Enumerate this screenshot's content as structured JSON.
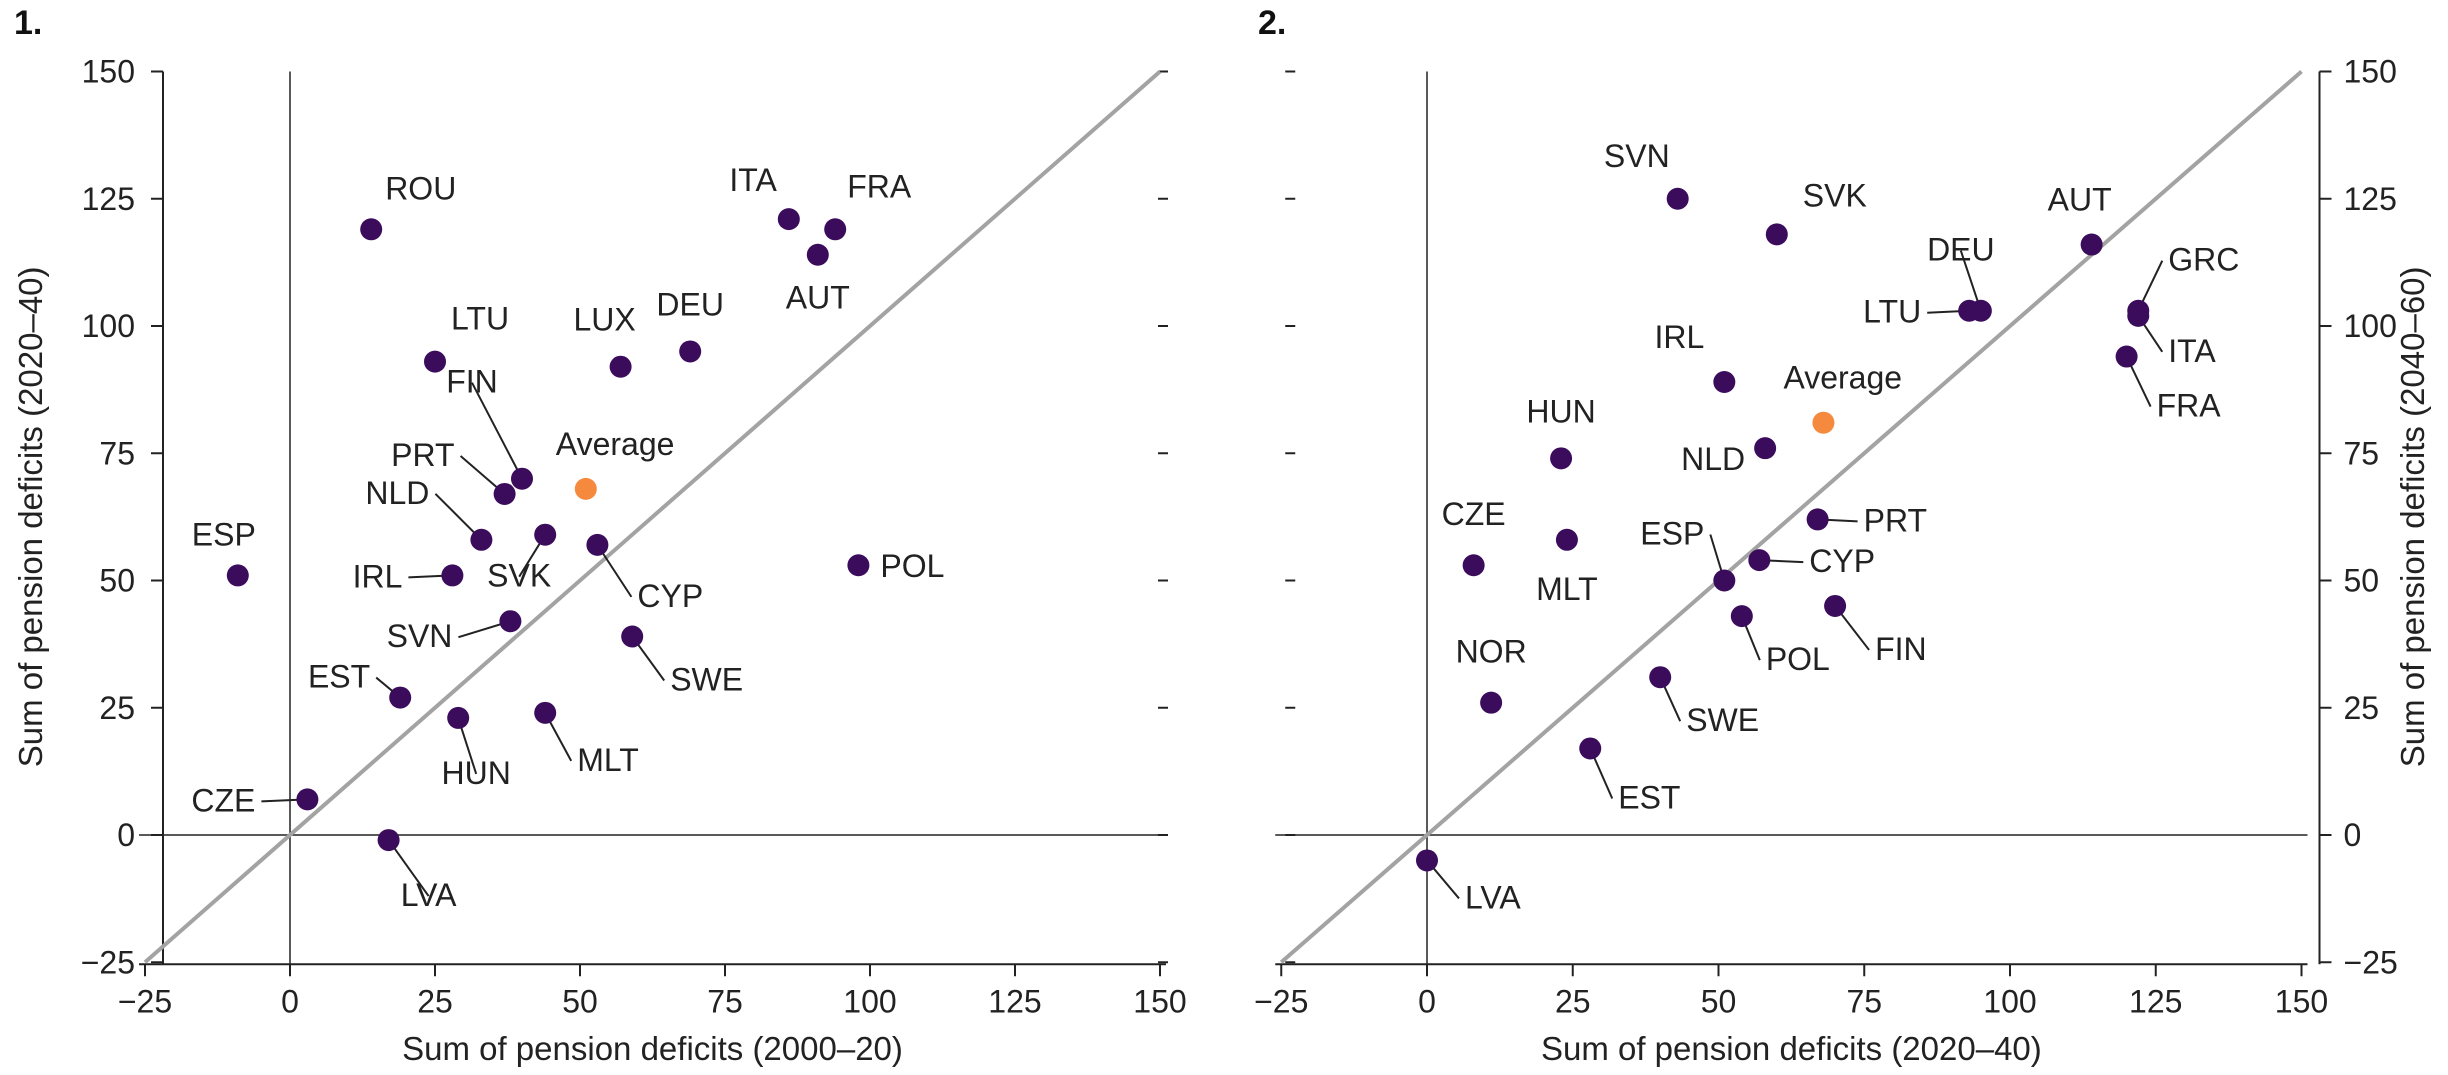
{
  "colors": {
    "point": "#3b0c5c",
    "average": "#f58a3e",
    "diagonal": "#a3a3a3",
    "axis": "#222222"
  },
  "chart_data": [
    {
      "type": "scatter",
      "panel_label": "1.",
      "xlabel": "Sum of pension deficits (2000–20)",
      "ylabel": "Sum of pension deficits (2020–40)",
      "xlim": [
        -25,
        150
      ],
      "ylim": [
        -25,
        150
      ],
      "xticks": [
        -25,
        0,
        25,
        50,
        75,
        100,
        125,
        150
      ],
      "yticks": [
        -25,
        0,
        25,
        50,
        75,
        100,
        125,
        150
      ],
      "reference_line": "45-degree",
      "points": [
        {
          "label": "ROU",
          "x": 14,
          "y": 119
        },
        {
          "label": "ITA",
          "x": 86,
          "y": 121
        },
        {
          "label": "FRA",
          "x": 94,
          "y": 119
        },
        {
          "label": "AUT",
          "x": 91,
          "y": 114
        },
        {
          "label": "LTU",
          "x": 25,
          "y": 93
        },
        {
          "label": "LUX",
          "x": 57,
          "y": 92
        },
        {
          "label": "DEU",
          "x": 69,
          "y": 95
        },
        {
          "label": "FIN",
          "x": 40,
          "y": 70
        },
        {
          "label": "PRT",
          "x": 37,
          "y": 67
        },
        {
          "label": "Average",
          "x": 51,
          "y": 68,
          "highlight": true
        },
        {
          "label": "NLD",
          "x": 33,
          "y": 58
        },
        {
          "label": "SVK",
          "x": 44,
          "y": 59
        },
        {
          "label": "CYP",
          "x": 53,
          "y": 57
        },
        {
          "label": "ESP",
          "x": -9,
          "y": 51
        },
        {
          "label": "IRL",
          "x": 28,
          "y": 51
        },
        {
          "label": "POL",
          "x": 98,
          "y": 53
        },
        {
          "label": "SVN",
          "x": 38,
          "y": 42
        },
        {
          "label": "SWE",
          "x": 59,
          "y": 39
        },
        {
          "label": "EST",
          "x": 19,
          "y": 27
        },
        {
          "label": "HUN",
          "x": 29,
          "y": 23
        },
        {
          "label": "MLT",
          "x": 44,
          "y": 24
        },
        {
          "label": "CZE",
          "x": 3,
          "y": 7
        },
        {
          "label": "LVA",
          "x": 17,
          "y": -1
        }
      ]
    },
    {
      "type": "scatter",
      "panel_label": "2.",
      "xlabel": "Sum of pension deficits (2020–40)",
      "ylabel": "Sum of pension deficits (2040–60)",
      "xlim": [
        -25,
        150
      ],
      "ylim": [
        -25,
        150
      ],
      "xticks": [
        -25,
        0,
        25,
        50,
        75,
        100,
        125,
        150
      ],
      "yticks": [
        -25,
        0,
        25,
        50,
        75,
        100,
        125,
        150
      ],
      "reference_line": "45-degree",
      "points": [
        {
          "label": "SVN",
          "x": 43,
          "y": 125
        },
        {
          "label": "SVK",
          "x": 60,
          "y": 118
        },
        {
          "label": "AUT",
          "x": 114,
          "y": 116
        },
        {
          "label": "DEU",
          "x": 95,
          "y": 103
        },
        {
          "label": "LTU",
          "x": 93,
          "y": 103
        },
        {
          "label": "GRC",
          "x": 122,
          "y": 103
        },
        {
          "label": "ITA",
          "x": 122,
          "y": 102
        },
        {
          "label": "FRA",
          "x": 120,
          "y": 94
        },
        {
          "label": "IRL",
          "x": 51,
          "y": 89
        },
        {
          "label": "Average",
          "x": 68,
          "y": 81,
          "highlight": true
        },
        {
          "label": "HUN",
          "x": 23,
          "y": 74
        },
        {
          "label": "NLD",
          "x": 58,
          "y": 76
        },
        {
          "label": "PRT",
          "x": 67,
          "y": 62
        },
        {
          "label": "CZE",
          "x": 8,
          "y": 53
        },
        {
          "label": "MLT",
          "x": 24,
          "y": 58
        },
        {
          "label": "ESP",
          "x": 51,
          "y": 50
        },
        {
          "label": "CYP",
          "x": 57,
          "y": 54
        },
        {
          "label": "POL",
          "x": 54,
          "y": 43
        },
        {
          "label": "FIN",
          "x": 70,
          "y": 45
        },
        {
          "label": "NOR",
          "x": 11,
          "y": 26
        },
        {
          "label": "SWE",
          "x": 40,
          "y": 31
        },
        {
          "label": "EST",
          "x": 28,
          "y": 17
        },
        {
          "label": "LVA",
          "x": 0,
          "y": -5
        }
      ]
    }
  ]
}
